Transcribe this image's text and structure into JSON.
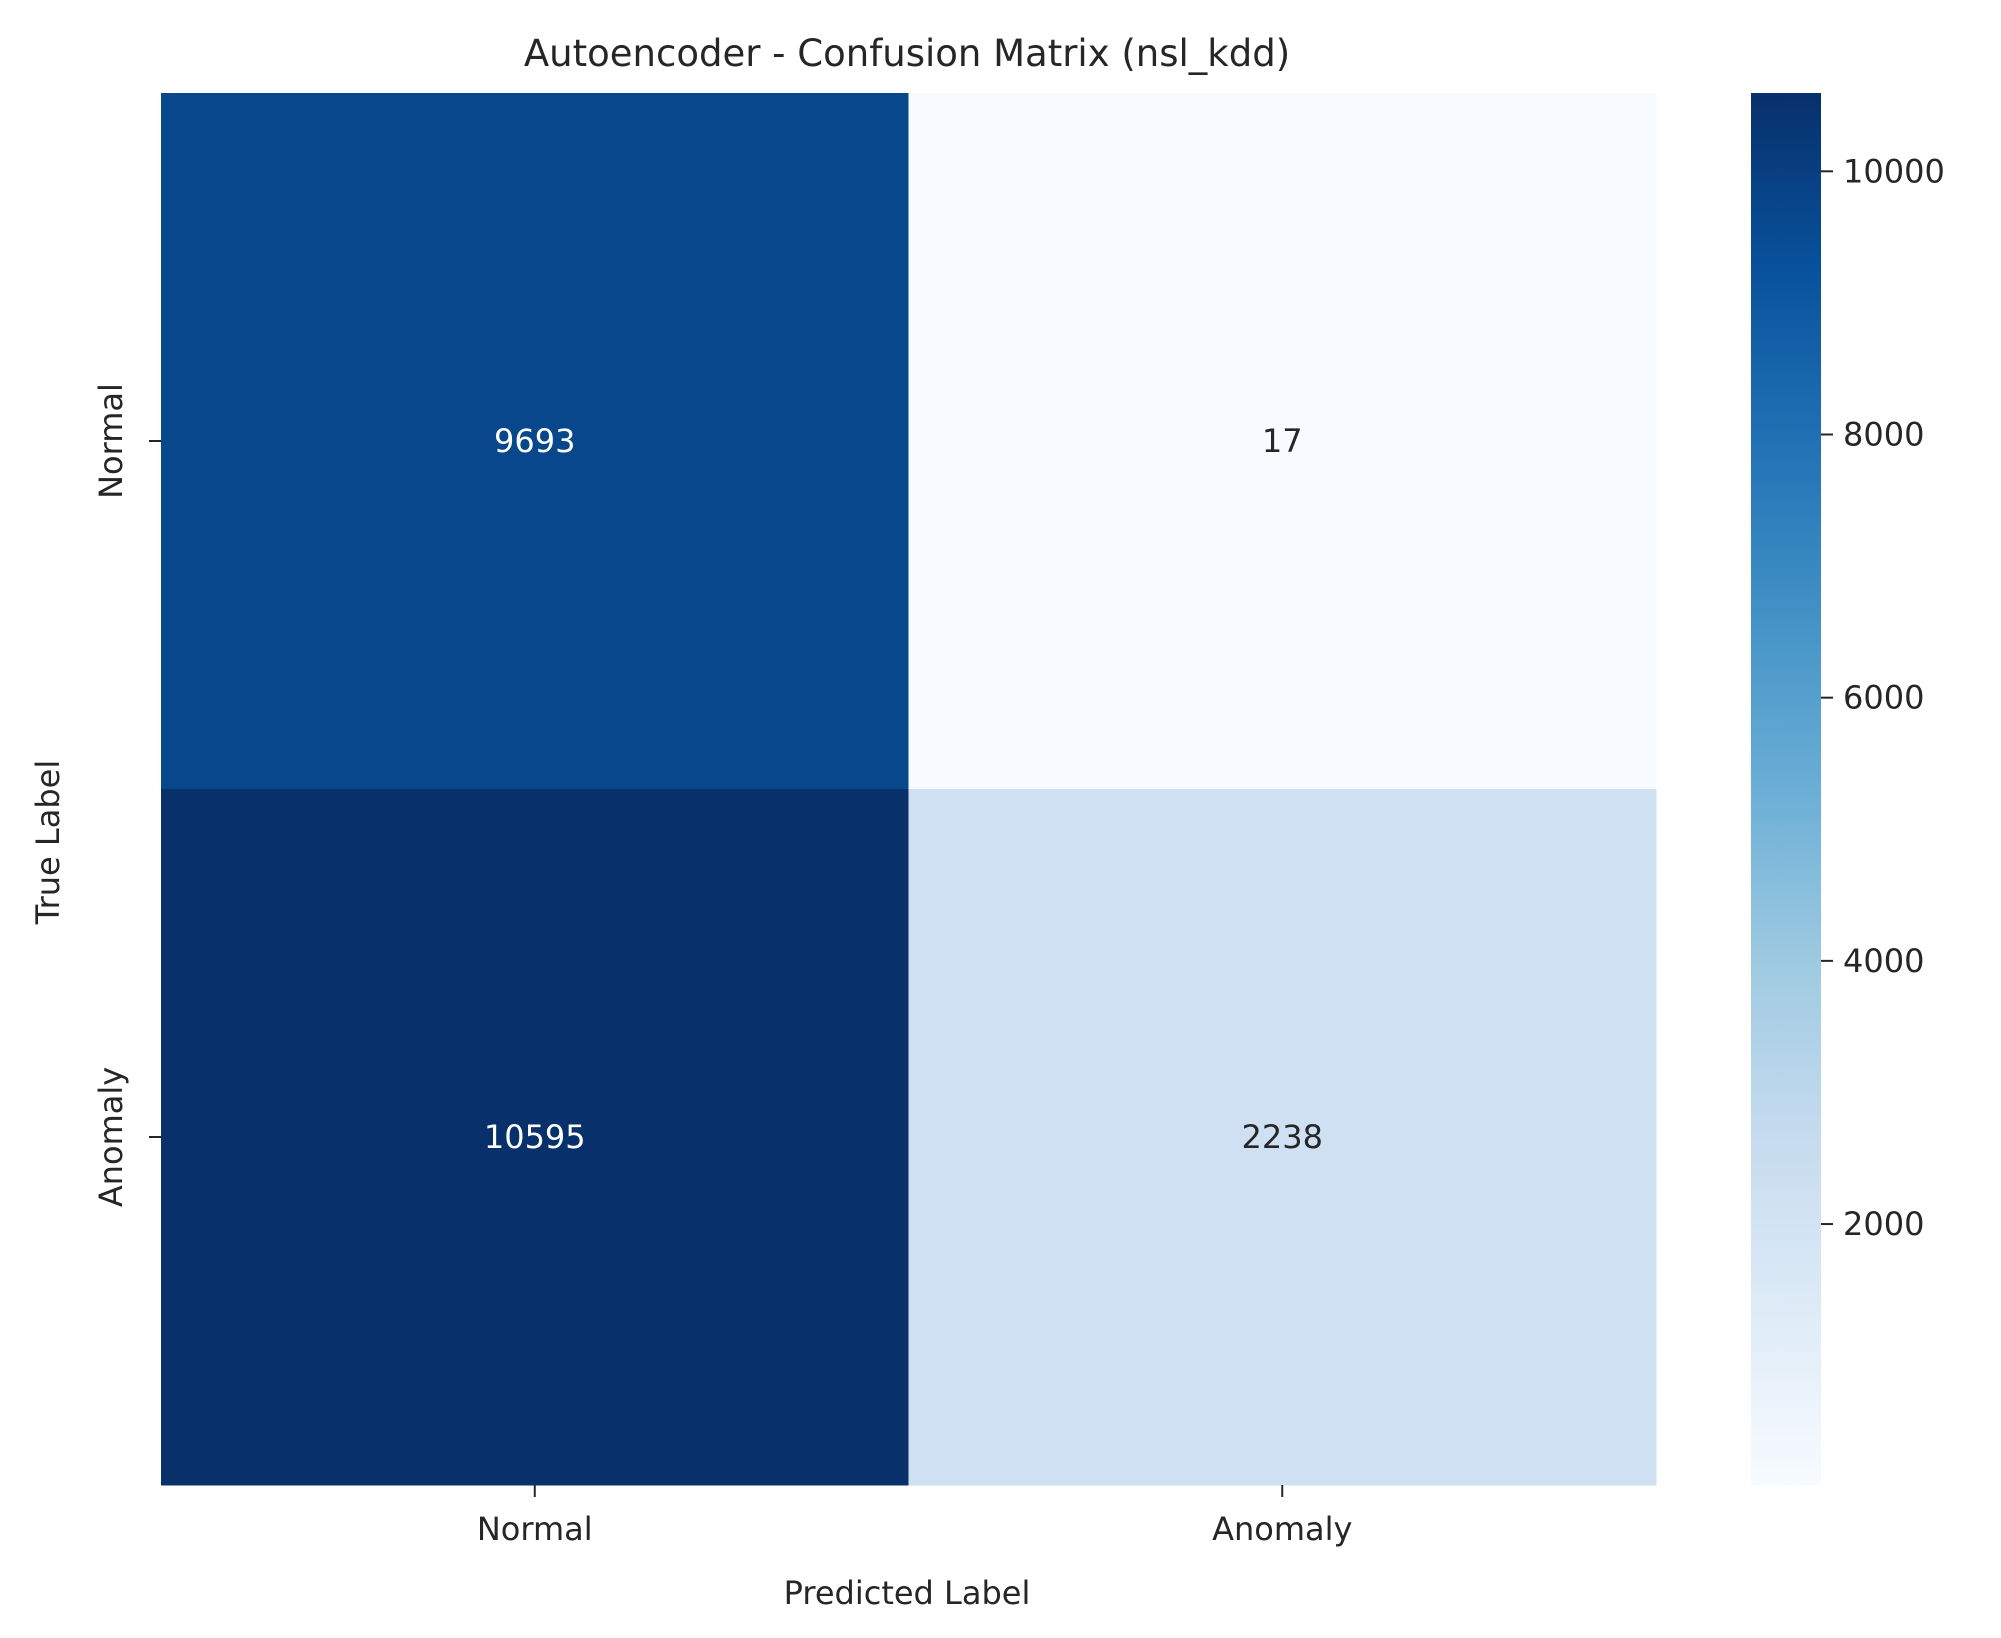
{
  "chart_data": {
    "type": "heatmap",
    "title": "Autoencoder - Confusion Matrix (nsl_kdd)",
    "xlabel": "Predicted Label",
    "ylabel": "True Label",
    "x_categories": [
      "Normal",
      "Anomaly"
    ],
    "y_categories": [
      "Normal",
      "Anomaly"
    ],
    "values": [
      [
        9693,
        17
      ],
      [
        10595,
        2238
      ]
    ],
    "value_labels": [
      [
        "9693",
        "17"
      ],
      [
        "10595",
        "2238"
      ]
    ],
    "colormap": "Blues",
    "colorbar": {
      "range": [
        17,
        10595
      ],
      "ticks": [
        2000,
        4000,
        6000,
        8000,
        10000
      ],
      "tick_labels": [
        "2000",
        "4000",
        "6000",
        "8000",
        "10000"
      ]
    },
    "annotation_colors": {
      "dark_cell": "#ffffff",
      "light_cell": "#262626"
    }
  }
}
